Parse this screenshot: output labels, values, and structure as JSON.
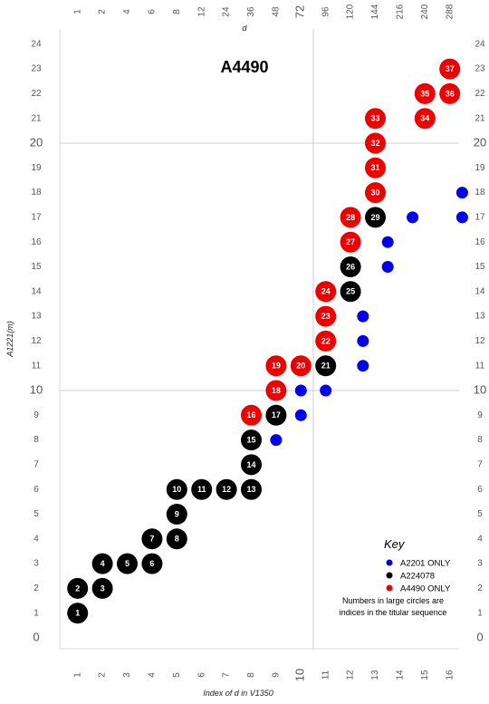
{
  "chart_data": {
    "type": "scatter",
    "title": "A4490",
    "xlabel": "Index of d in V1350",
    "ylabel": "A1221(m)",
    "top_axis_label": "d",
    "xlim": [
      0,
      16.5
    ],
    "ylim": [
      0,
      24
    ],
    "x_ticks": [
      "1",
      "2",
      "3",
      "4",
      "5",
      "6",
      "7",
      "8",
      "9",
      "10",
      "11",
      "12",
      "13",
      "14",
      "15",
      "16"
    ],
    "x_ticks_emphasized": [
      "10"
    ],
    "top_ticks": [
      "1",
      "2",
      "4",
      "6",
      "8",
      "12",
      "24",
      "36",
      "48",
      "72",
      "96",
      "120",
      "144",
      "216",
      "240",
      "288"
    ],
    "top_ticks_emphasized": [
      "72"
    ],
    "y_ticks": [
      "0",
      "1",
      "2",
      "3",
      "4",
      "5",
      "6",
      "7",
      "8",
      "9",
      "10",
      "11",
      "12",
      "13",
      "14",
      "15",
      "16",
      "17",
      "18",
      "19",
      "20",
      "21",
      "22",
      "23",
      "24"
    ],
    "y_ticks_emphasized": [
      "0",
      "10",
      "20"
    ],
    "reference_lines": {
      "x": [
        10
      ],
      "y": [
        10,
        20
      ]
    },
    "grid": false,
    "legend_position": "bottom-right",
    "legend": {
      "title": "Key",
      "entries": [
        {
          "label": "A2201 ONLY",
          "color": "#0000ee"
        },
        {
          "label": "A224078",
          "color": "#000000"
        },
        {
          "label": "A4490 ONLY",
          "color": "#ee0000"
        }
      ],
      "note": [
        "Numbers in large circles are",
        "indices in the titular sequence"
      ]
    },
    "series": [
      {
        "name": "A2201 ONLY",
        "color": "#0000ee",
        "points": [
          {
            "x": 8.5,
            "y": 8
          },
          {
            "x": 9.5,
            "y": 9
          },
          {
            "x": 9.5,
            "y": 10
          },
          {
            "x": 10.5,
            "y": 10
          },
          {
            "x": 12,
            "y": 11
          },
          {
            "x": 12,
            "y": 12
          },
          {
            "x": 12,
            "y": 13
          },
          {
            "x": 13,
            "y": 15
          },
          {
            "x": 13,
            "y": 16
          },
          {
            "x": 14,
            "y": 17
          },
          {
            "x": 16,
            "y": 17
          },
          {
            "x": 16,
            "y": 18
          }
        ]
      },
      {
        "name": "A224078",
        "color": "#000000",
        "points": [
          {
            "x": 0.5,
            "y": 1,
            "n": "1"
          },
          {
            "x": 0.5,
            "y": 2,
            "n": "2"
          },
          {
            "x": 1.5,
            "y": 2,
            "n": "3"
          },
          {
            "x": 1.5,
            "y": 3,
            "n": "4"
          },
          {
            "x": 2.5,
            "y": 3,
            "n": "5"
          },
          {
            "x": 3.5,
            "y": 3,
            "n": "6"
          },
          {
            "x": 3.5,
            "y": 4,
            "n": "7"
          },
          {
            "x": 4.5,
            "y": 4,
            "n": "8"
          },
          {
            "x": 4.5,
            "y": 5,
            "n": "9"
          },
          {
            "x": 4.5,
            "y": 6,
            "n": "10"
          },
          {
            "x": 5.5,
            "y": 6,
            "n": "11"
          },
          {
            "x": 6.5,
            "y": 6,
            "n": "12"
          },
          {
            "x": 7.5,
            "y": 6,
            "n": "13"
          },
          {
            "x": 7.5,
            "y": 7,
            "n": "14"
          },
          {
            "x": 7.5,
            "y": 8,
            "n": "15"
          },
          {
            "x": 8.5,
            "y": 9,
            "n": "17"
          },
          {
            "x": 10.5,
            "y": 11,
            "n": "21"
          },
          {
            "x": 11.5,
            "y": 14,
            "n": "25"
          },
          {
            "x": 11.5,
            "y": 15,
            "n": "26"
          },
          {
            "x": 12.5,
            "y": 17,
            "n": "29"
          }
        ]
      },
      {
        "name": "A4490 ONLY",
        "color": "#ee0000",
        "points": [
          {
            "x": 7.5,
            "y": 9,
            "n": "16"
          },
          {
            "x": 8.5,
            "y": 10,
            "n": "18"
          },
          {
            "x": 8.5,
            "y": 11,
            "n": "19"
          },
          {
            "x": 9.5,
            "y": 11,
            "n": "20"
          },
          {
            "x": 10.5,
            "y": 12,
            "n": "22"
          },
          {
            "x": 10.5,
            "y": 13,
            "n": "23"
          },
          {
            "x": 10.5,
            "y": 14,
            "n": "24"
          },
          {
            "x": 11.5,
            "y": 16,
            "n": "27"
          },
          {
            "x": 11.5,
            "y": 17,
            "n": "28"
          },
          {
            "x": 12.5,
            "y": 18,
            "n": "30"
          },
          {
            "x": 12.5,
            "y": 19,
            "n": "31"
          },
          {
            "x": 12.5,
            "y": 20,
            "n": "32"
          },
          {
            "x": 12.5,
            "y": 21,
            "n": "33"
          },
          {
            "x": 14.5,
            "y": 21,
            "n": "34"
          },
          {
            "x": 14.5,
            "y": 22,
            "n": "35"
          },
          {
            "x": 15.5,
            "y": 22,
            "n": "36"
          },
          {
            "x": 15.5,
            "y": 23,
            "n": "37"
          }
        ]
      }
    ]
  }
}
